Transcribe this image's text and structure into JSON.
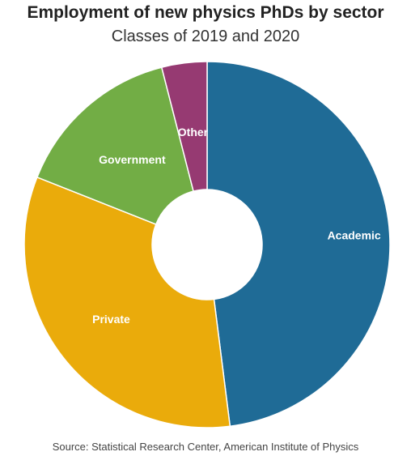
{
  "chart_data": {
    "type": "pie",
    "title": "Employment of new physics PhDs by sector",
    "subtitle": "Classes of 2019 and 2020",
    "donut": true,
    "categories": [
      "Academic",
      "Private",
      "Government",
      "Other"
    ],
    "values": [
      48,
      33,
      15,
      4
    ],
    "unit": "%",
    "colors": [
      "#1f6b96",
      "#eaab0b",
      "#72ad45",
      "#963a72"
    ],
    "start_angle_deg": 0,
    "direction": "clockwise",
    "legend": "none",
    "source": "Source: Statistical Research Center, American Institute of Physics"
  }
}
